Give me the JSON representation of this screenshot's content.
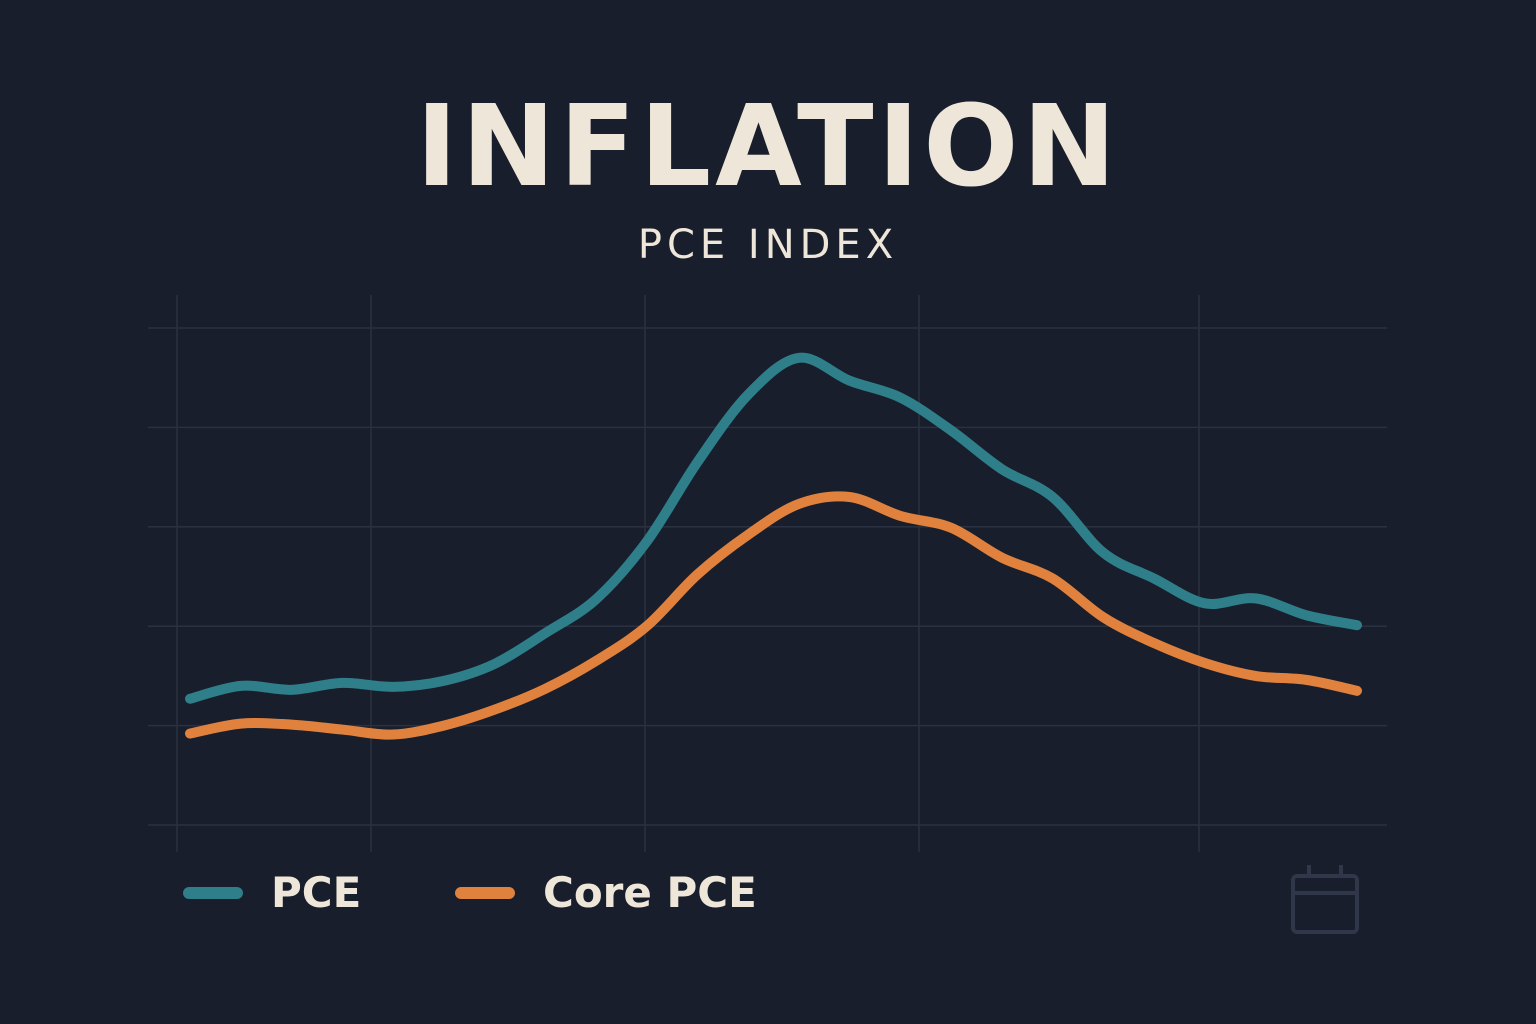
{
  "chart_data": {
    "type": "line",
    "title": "INFLATION",
    "subtitle": "PCE INDEX",
    "xlabel": "",
    "ylabel": "",
    "ylim": [
      0,
      5
    ],
    "xlim": [
      0,
      23
    ],
    "grid": true,
    "legend_placement": "bottom-left",
    "x": [
      0,
      1,
      2,
      3,
      4,
      5,
      6,
      7,
      8,
      9,
      10,
      11,
      12,
      13,
      14,
      15,
      16,
      17,
      18,
      19,
      20,
      21,
      22,
      23
    ],
    "series": [
      {
        "name": "PCE",
        "color": "#2e7f8a",
        "values": [
          1.27,
          1.4,
          1.36,
          1.43,
          1.39,
          1.45,
          1.62,
          1.93,
          2.27,
          2.85,
          3.65,
          4.33,
          4.7,
          4.47,
          4.3,
          3.97,
          3.58,
          3.3,
          2.74,
          2.48,
          2.23,
          2.28,
          2.11,
          2.01
        ]
      },
      {
        "name": "Core PCE",
        "color": "#e0823e",
        "values": [
          0.92,
          1.02,
          1.01,
          0.96,
          0.91,
          1.0,
          1.16,
          1.37,
          1.65,
          2.0,
          2.52,
          2.92,
          3.23,
          3.3,
          3.11,
          2.99,
          2.69,
          2.48,
          2.09,
          1.83,
          1.63,
          1.5,
          1.46,
          1.35
        ]
      }
    ]
  },
  "icons": {
    "corner": "calendar-icon"
  },
  "colors": {
    "background": "#181e2b",
    "grid": "#2a3140",
    "text": "#efe6da"
  }
}
